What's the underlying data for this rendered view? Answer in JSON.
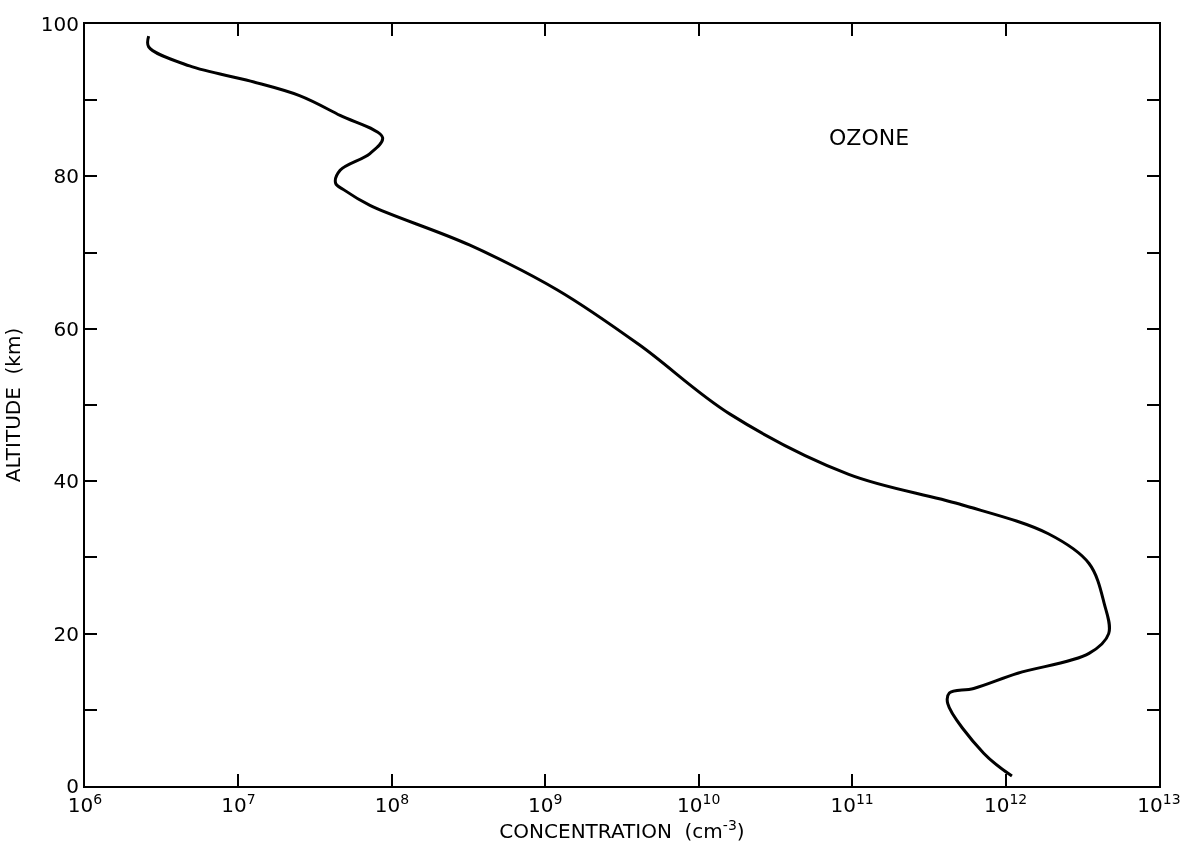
{
  "chart_data": {
    "type": "line",
    "xlabel": "CONCENTRATION  (cm$^{-3}$)",
    "ylabel": "ALTITUDE  (km)",
    "log": "x",
    "marker": "none",
    "line_style": "solid",
    "annotations": [
      "OZONE"
    ],
    "series": [
      {
        "color": "#000000",
        "x": [
          2600000.0,
          2600000.0,
          4800000.0,
          12000000.0,
          25000000.0,
          46000000.0,
          87000000.0,
          72000000.0,
          46000000.0,
          43000000.0,
          49000000.0,
          72000000.0,
          320000000.0,
          1200000000.0,
          4100000000.0,
          16000000000.0,
          95000000000.0,
          500000000000.0,
          1900000000000.0,
          3500000000000.0,
          4400000000000.0,
          4700000000000.0,
          3500000000000.0,
          1200000000000.0,
          620000000000.0,
          430000000000.0,
          420000000000.0,
          720000000000.0,
          1100000000000.0
        ],
        "values": [
          98.4,
          97,
          94.5,
          92.5,
          90.6,
          88,
          85.1,
          83,
          80.8,
          79.1,
          78.2,
          76.2,
          71,
          65.1,
          57.9,
          48.8,
          40.9,
          37,
          33.1,
          29.2,
          23.9,
          20,
          17.4,
          14.8,
          12.8,
          12.2,
          10.8,
          4.3,
          1.3
        ]
      }
    ],
    "xlim": [
      1000000.0,
      10000000000000.0
    ],
    "xticks": [
      {
        "value": 1000000.0,
        "label": "10$^{6}$"
      },
      {
        "value": 10000000.0,
        "label": "10$^{7}$"
      },
      {
        "value": 100000000.0,
        "label": "10$^{8}$"
      },
      {
        "value": 1000000000.0,
        "label": "10$^{9}$"
      },
      {
        "value": 10000000000.0,
        "label": "10$^{10}$"
      },
      {
        "value": 100000000000.0,
        "label": "10$^{11}$"
      },
      {
        "value": 1000000000000.0,
        "label": "10$^{12}$"
      },
      {
        "value": 10000000000000.0,
        "label": "10$^{13}$"
      }
    ],
    "ylim": [
      0,
      100
    ],
    "yticks": [
      0,
      {
        "value": 10,
        "label": null
      },
      20,
      {
        "value": 30,
        "label": null
      },
      40,
      {
        "value": 50,
        "label": null
      },
      60,
      {
        "value": 70,
        "label": null
      },
      80,
      {
        "value": 90,
        "label": null
      },
      100
    ]
  }
}
